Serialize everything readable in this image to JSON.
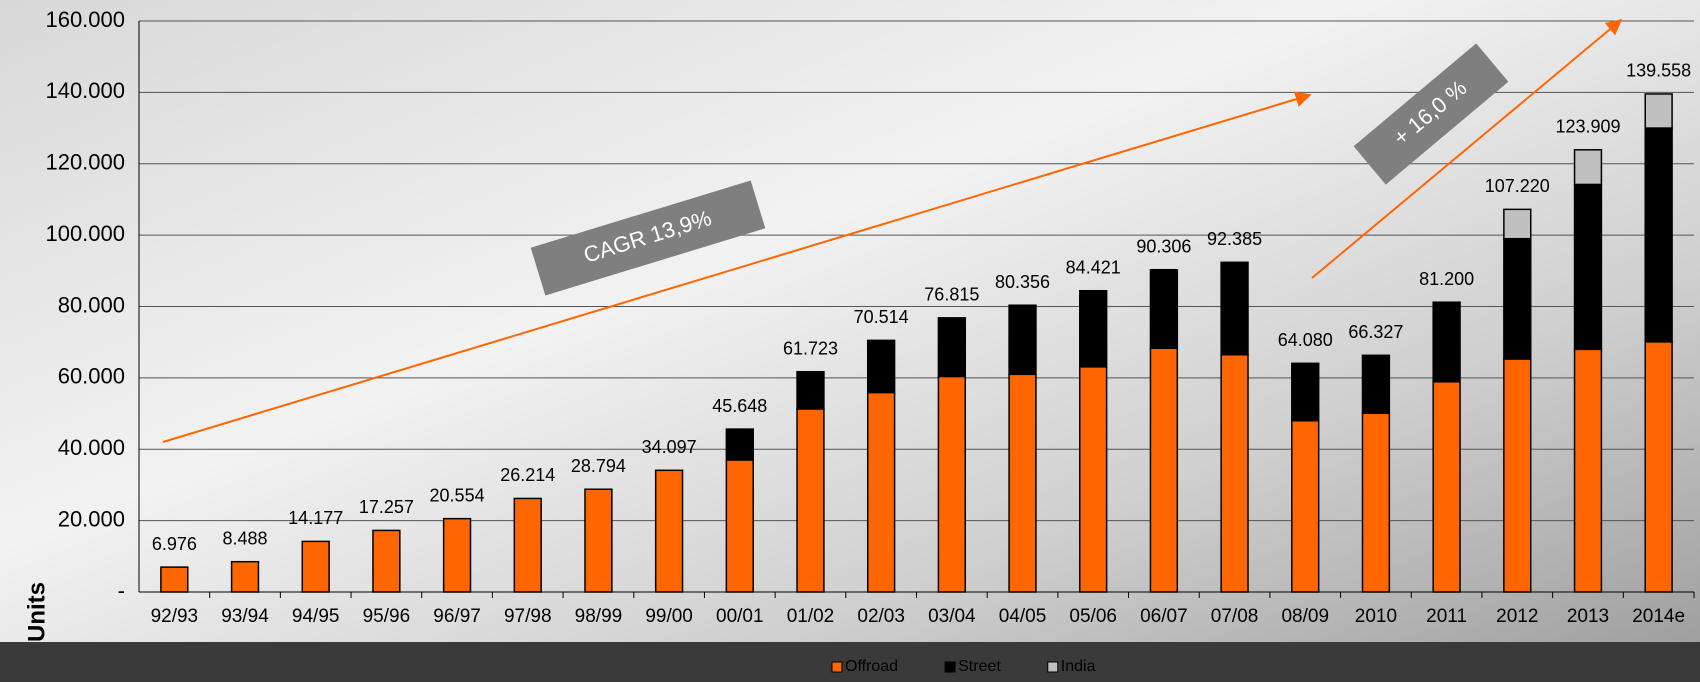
{
  "chart_data": {
    "type": "stacked-bar",
    "y_label": "Units",
    "categories": [
      "92/93",
      "93/94",
      "94/95",
      "95/96",
      "96/97",
      "97/98",
      "98/99",
      "99/00",
      "00/01",
      "01/02",
      "02/03",
      "03/04",
      "04/05",
      "05/06",
      "06/07",
      "07/08",
      "08/09",
      "2010",
      "2011",
      "2012",
      "2013",
      "2014e"
    ],
    "series": [
      {
        "name": "Offroad",
        "color": "#ff6600",
        "values": [
          6976,
          8488,
          14177,
          17257,
          20554,
          26214,
          28794,
          34097,
          37000,
          51300,
          55900,
          60400,
          61000,
          63100,
          68300,
          66500,
          48000,
          50100,
          58900,
          65300,
          68000,
          70100
        ]
      },
      {
        "name": "Street",
        "color": "#000000",
        "values": [
          null,
          null,
          null,
          null,
          null,
          null,
          null,
          null,
          8648,
          10423,
          14614,
          16415,
          19356,
          21321,
          22006,
          25885,
          16080,
          16227,
          22300,
          33700,
          46200,
          59900
        ]
      },
      {
        "name": "India",
        "color": "#c0c0c0",
        "values": [
          null,
          null,
          null,
          null,
          null,
          null,
          null,
          null,
          null,
          null,
          null,
          null,
          null,
          null,
          null,
          null,
          null,
          null,
          null,
          8220,
          9709,
          9558
        ]
      }
    ],
    "totals": {
      "values": [
        6976,
        8488,
        14177,
        17257,
        20554,
        26214,
        28794,
        34097,
        45648,
        61723,
        70514,
        76815,
        80356,
        84421,
        90306,
        92385,
        64080,
        66327,
        81200,
        107220,
        123909,
        139558
      ],
      "value_labels": [
        "6.976",
        "8.488",
        "14.177",
        "17.257",
        "20.554",
        "26.214",
        "28.794",
        "34.097",
        "45.648",
        "61.723",
        "70.514",
        "76.815",
        "80.356",
        "84.421",
        "90.306",
        "92.385",
        "64.080",
        "66.327",
        "81.200",
        "107.220",
        "123.909",
        "139.558"
      ]
    },
    "ylim": [
      0,
      160000
    ],
    "yticks": [
      {
        "value": 0,
        "label": "-"
      },
      {
        "value": 20000,
        "label": "20.000"
      },
      {
        "value": 40000,
        "label": "40.000"
      },
      {
        "value": 60000,
        "label": "60.000"
      },
      {
        "value": 80000,
        "label": "80.000"
      },
      {
        "value": 100000,
        "label": "100.000"
      },
      {
        "value": 120000,
        "label": "120.000"
      },
      {
        "value": 140000,
        "label": "140.000"
      },
      {
        "value": 160000,
        "label": "160.000"
      }
    ],
    "grid": true,
    "legend": "bottom",
    "annotations": [
      "CAGR 13,9%",
      "+ 16,0 %"
    ]
  }
}
